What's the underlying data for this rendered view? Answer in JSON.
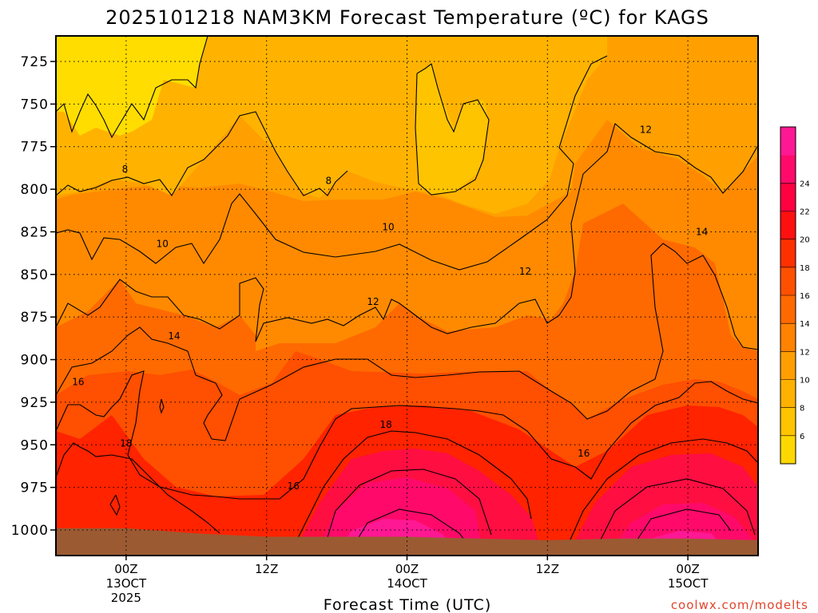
{
  "chart_data": {
    "type": "heatmap",
    "title": "2025101218 NAM3KM Forecast Temperature (ºC) for KAGS",
    "xlabel": "Forecast Time (UTC)",
    "ylabel": "",
    "credit": "coolwx.com/modelts",
    "x_ticks": [
      {
        "hour": 6,
        "l1": "00Z",
        "l2": "13OCT",
        "l3": "2025"
      },
      {
        "hour": 18,
        "l1": "12Z",
        "l2": "",
        "l3": ""
      },
      {
        "hour": 30,
        "l1": "00Z",
        "l2": "14OCT",
        "l3": ""
      },
      {
        "hour": 42,
        "l1": "12Z",
        "l2": "",
        "l3": ""
      },
      {
        "hour": 54,
        "l1": "00Z",
        "l2": "15OCT",
        "l3": ""
      }
    ],
    "xlim": [
      0,
      60
    ],
    "y_ticks": [
      725,
      750,
      775,
      800,
      825,
      850,
      875,
      900,
      925,
      950,
      975,
      1000
    ],
    "ylim": [
      710,
      1015
    ],
    "y_scale": "pressure (hPa), inverted",
    "grid": true,
    "colorbar": {
      "levels": [
        6,
        8,
        10,
        12,
        14,
        16,
        18,
        20,
        22,
        24
      ],
      "colors": [
        "#ffd700",
        "#ffc400",
        "#ffb100",
        "#ff9e00",
        "#ff8200",
        "#ff6a00",
        "#ff5000",
        "#ff3000",
        "#ff1010",
        "#ff0040",
        "#ff0a6a",
        "#ff1893"
      ]
    },
    "contour_labels": [
      {
        "hour": 5.9,
        "p": 790,
        "text": "8"
      },
      {
        "hour": 23.3,
        "p": 797,
        "text": "8"
      },
      {
        "hour": 9.1,
        "p": 834,
        "text": "10"
      },
      {
        "hour": 28.4,
        "p": 824,
        "text": "10"
      },
      {
        "hour": 27.1,
        "p": 868,
        "text": "12"
      },
      {
        "hour": 40.1,
        "p": 850,
        "text": "12"
      },
      {
        "hour": 50.4,
        "p": 767,
        "text": "12"
      },
      {
        "hour": 10.1,
        "p": 888,
        "text": "14"
      },
      {
        "hour": 55.2,
        "p": 827,
        "text": "14"
      },
      {
        "hour": 1.9,
        "p": 915,
        "text": "16"
      },
      {
        "hour": 20.3,
        "p": 976,
        "text": "16"
      },
      {
        "hour": 45.1,
        "p": 957,
        "text": "16"
      },
      {
        "hour": 6.0,
        "p": 951,
        "text": "18"
      },
      {
        "hour": 28.2,
        "p": 940,
        "text": "18"
      }
    ],
    "terrain_pressure": [
      [
        0,
        999
      ],
      [
        6,
        999
      ],
      [
        12,
        1002
      ],
      [
        18,
        1004
      ],
      [
        24,
        1004
      ],
      [
        30,
        1004
      ],
      [
        36,
        1005
      ],
      [
        42,
        1006
      ],
      [
        48,
        1005
      ],
      [
        54,
        1005
      ],
      [
        60,
        1006
      ]
    ]
  }
}
